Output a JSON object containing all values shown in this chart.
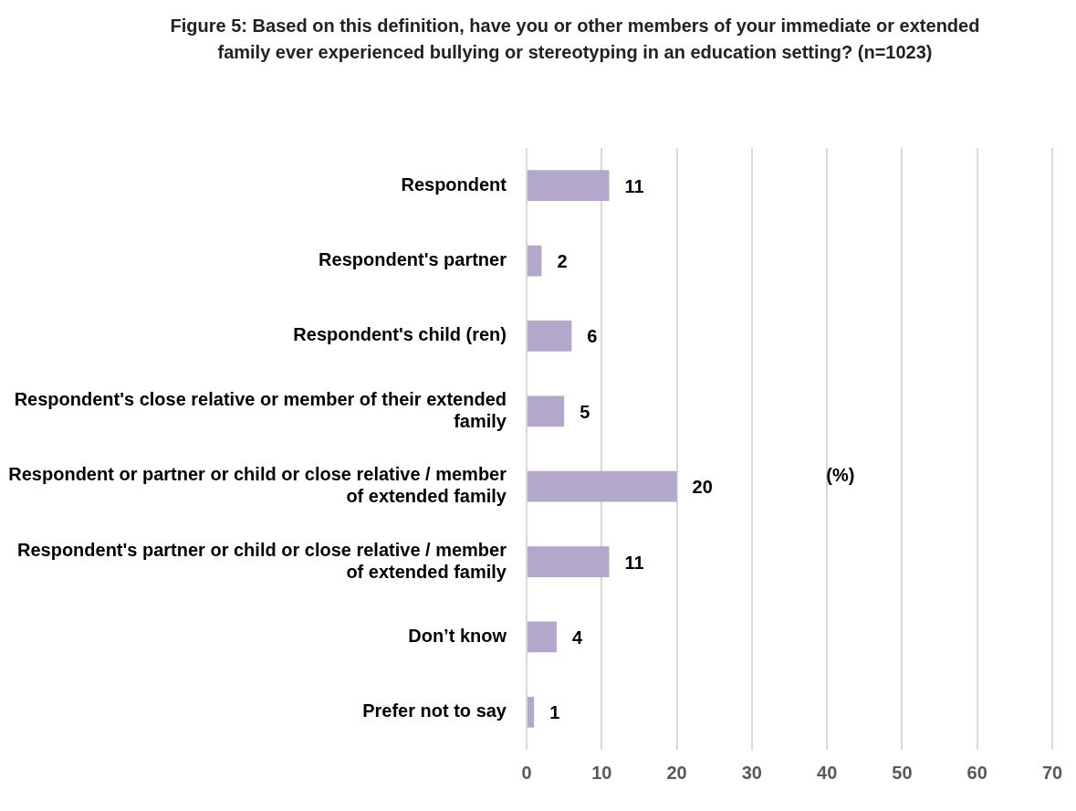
{
  "chart_data": {
    "type": "bar",
    "orientation": "horizontal",
    "title": "Figure 5: Based on this definition, have you or other members of your immediate or extended family ever experienced bullying or stereotyping in an education setting? (n=1023)",
    "xlabel": "(%)",
    "categories": [
      "Respondent",
      "Respondent's partner",
      "Respondent's child (ren)",
      "Respondent's close relative or member of their extended family",
      "Respondent or partner or child or close relative / member of extended family",
      "Respondent's partner or child or close relative / member of extended family",
      "Don’t know",
      "Prefer not to say"
    ],
    "values": [
      11,
      2,
      6,
      5,
      20,
      11,
      4,
      1
    ],
    "color": "#b4a7cc",
    "xlim": [
      0,
      70
    ],
    "xticks": [
      0,
      10,
      20,
      30,
      40,
      50,
      60,
      70
    ],
    "grid": "x",
    "data_labels": true,
    "legend": false
  }
}
